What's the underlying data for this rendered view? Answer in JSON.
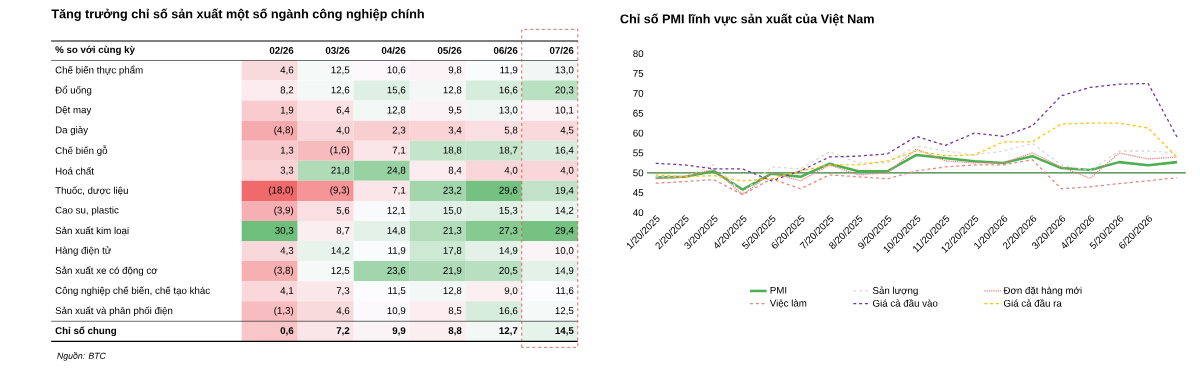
{
  "chart_data": [
    {
      "type": "heatmap",
      "title": "Tăng trưởng chỉ số sản xuất một số ngành công nghiệp chính",
      "ylabel": "% so với cùng kỳ",
      "categories": [
        "02/26",
        "03/26",
        "04/26",
        "05/26",
        "06/26",
        "07/26"
      ],
      "y_categories": [
        "Chế biến thực phẩm",
        "Đổ uống",
        "Dệt may",
        "Da giày",
        "Chế biến gỗ",
        "Hoá chất",
        "Thuốc, dược liệu",
        "Cao su, plastic",
        "Sản xuất kim loại",
        "Hàng điện tử",
        "Sản xuất xe có động cơ",
        "Công nghiệp chế biến, chế tạo khác",
        "Sản xuất và phân phối điện",
        "Chỉ số chung"
      ],
      "cells": [
        [
          4.6,
          12.5,
          10.6,
          9.8,
          11.9,
          13.0
        ],
        [
          8.2,
          12.6,
          15.6,
          12.8,
          16.6,
          20.3
        ],
        [
          1.9,
          6.4,
          12.8,
          9.5,
          13.0,
          10.1
        ],
        [
          -4.8,
          4.0,
          2.3,
          3.4,
          5.8,
          4.5
        ],
        [
          1.3,
          -1.6,
          7.1,
          18.8,
          18.7,
          16.4
        ],
        [
          3.3,
          21.8,
          24.8,
          8.4,
          4.0,
          4.0
        ],
        [
          -18.0,
          -9.3,
          7.1,
          23.2,
          29.6,
          19.4
        ],
        [
          -3.9,
          5.6,
          12.1,
          15.0,
          15.3,
          14.2
        ],
        [
          30.3,
          8.7,
          14.8,
          21.3,
          27.3,
          29.4
        ],
        [
          4.3,
          14.2,
          11.9,
          17.8,
          14.9,
          10.0
        ],
        [
          -3.8,
          12.5,
          23.6,
          21.9,
          20.5,
          14.9
        ],
        [
          4.1,
          7.3,
          11.5,
          12.8,
          9.0,
          11.6
        ],
        [
          -1.3,
          4.6,
          10.9,
          8.5,
          16.6,
          12.5
        ],
        [
          0.6,
          7.2,
          9.9,
          8.8,
          12.7,
          14.5
        ]
      ],
      "cell_labels": [
        [
          "4,6",
          "12,5",
          "10,6",
          "9,8",
          "11,9",
          "13,0"
        ],
        [
          "8,2",
          "12,6",
          "15,6",
          "12,8",
          "16,6",
          "20,3"
        ],
        [
          "1,9",
          "6,4",
          "12,8",
          "9,5",
          "13,0",
          "10,1"
        ],
        [
          "(4,8)",
          "4,0",
          "2,3",
          "3,4",
          "5,8",
          "4,5"
        ],
        [
          "1,3",
          "(1,6)",
          "7,1",
          "18,8",
          "18,7",
          "16,4"
        ],
        [
          "3,3",
          "21,8",
          "24,8",
          "8,4",
          "4,0",
          "4,0"
        ],
        [
          "(18,0)",
          "(9,3)",
          "7,1",
          "23,2",
          "29,6",
          "19,4"
        ],
        [
          "(3,9)",
          "5,6",
          "12,1",
          "15,0",
          "15,3",
          "14,2"
        ],
        [
          "30,3",
          "8,7",
          "14,8",
          "21,3",
          "27,3",
          "29,4"
        ],
        [
          "4,3",
          "14,2",
          "11,9",
          "17,8",
          "14,9",
          "10,0"
        ],
        [
          "(3,8)",
          "12,5",
          "23,6",
          "21,9",
          "20,5",
          "14,9"
        ],
        [
          "4,1",
          "7,3",
          "11,5",
          "12,8",
          "9,0",
          "11,6"
        ],
        [
          "(1,3)",
          "4,6",
          "10,9",
          "8,5",
          "16,6",
          "12,5"
        ],
        [
          "0,6",
          "7,2",
          "9,9",
          "8,8",
          "12,7",
          "14,5"
        ]
      ],
      "colors": [
        "#f0696b",
        "#fcfcff",
        "#6fbf7c"
      ],
      "annotations": [
        "Nguồn: BTC"
      ]
    },
    {
      "type": "line",
      "title": "Chỉ số PMI lĩnh vực sản xuất của Việt Nam",
      "categories": [
        "1/20/2025",
        "2/20/2025",
        "3/20/2025",
        "4/20/2025",
        "5/20/2025",
        "6/20/2025",
        "7/20/2025",
        "8/20/2025",
        "9/20/2025",
        "10/20/2025",
        "11/20/2025",
        "12/20/2025",
        "1/20/2026",
        "2/20/2026",
        "3/20/2026",
        "4/20/2026",
        "5/20/2026",
        "6/20/2026",
        null
      ],
      "series": [
        {
          "name": "PMI",
          "color": "#4caf50",
          "line_style": "solid",
          "values": [
            48.8,
            49.0,
            50.4,
            45.8,
            49.8,
            49.0,
            52.3,
            50.4,
            50.4,
            54.5,
            53.7,
            52.9,
            52.5,
            54.2,
            51.2,
            50.7,
            52.7,
            51.9,
            52.7
          ]
        },
        {
          "name": "Sản lượng",
          "color": "#d9d9d9",
          "line_style": "dashed",
          "values": [
            49.0,
            49.0,
            52.0,
            45.0,
            51.5,
            51.0,
            55.3,
            52.5,
            52.5,
            56.8,
            55.5,
            54.5,
            55.5,
            57.4,
            52.0,
            50.5,
            55.5,
            55.5,
            55.0
          ]
        },
        {
          "name": "Đơn đặt hàng mới",
          "color": "#f08080",
          "line_style": "dotted",
          "values": [
            48.5,
            49.0,
            51.0,
            44.5,
            50.0,
            48.0,
            52.0,
            49.5,
            50.0,
            56.0,
            53.0,
            52.5,
            52.5,
            55.0,
            51.5,
            48.6,
            55.0,
            53.5,
            54.0
          ]
        },
        {
          "name": "Việc làm",
          "color": "#e8867c",
          "line_style": "dashed",
          "values": [
            47.4,
            47.8,
            48.3,
            44.5,
            48.5,
            46.0,
            49.5,
            49.0,
            48.5,
            50.5,
            51.5,
            52.0,
            52.0,
            53.3,
            46.0,
            46.5,
            47.3,
            48.0,
            48.8
          ]
        },
        {
          "name": "Giá cả đầu vào",
          "color": "#7030a0",
          "line_style": "dashed",
          "values": [
            52.4,
            52.0,
            51.0,
            51.0,
            48.0,
            50.5,
            54.0,
            54.2,
            54.8,
            59.2,
            56.9,
            60.0,
            59.2,
            61.8,
            69.4,
            71.5,
            72.3,
            72.5,
            59.0
          ]
        },
        {
          "name": "Giá cả đầu ra",
          "color": "#ffc000",
          "line_style": "dashed",
          "values": [
            49.5,
            49.0,
            49.3,
            48.0,
            48.5,
            50.5,
            52.0,
            52.0,
            53.0,
            55.5,
            54.3,
            54.5,
            57.8,
            57.8,
            62.3,
            62.5,
            62.5,
            61.3,
            53.9
          ]
        }
      ],
      "ylim": [
        40,
        80
      ],
      "yticks": [
        40,
        45,
        50,
        55,
        60,
        65,
        70,
        75,
        80
      ],
      "ref_lines": [
        {
          "axis": "y",
          "value": 50,
          "color": "#3a7d3a"
        }
      ],
      "legend": "bottom"
    }
  ]
}
